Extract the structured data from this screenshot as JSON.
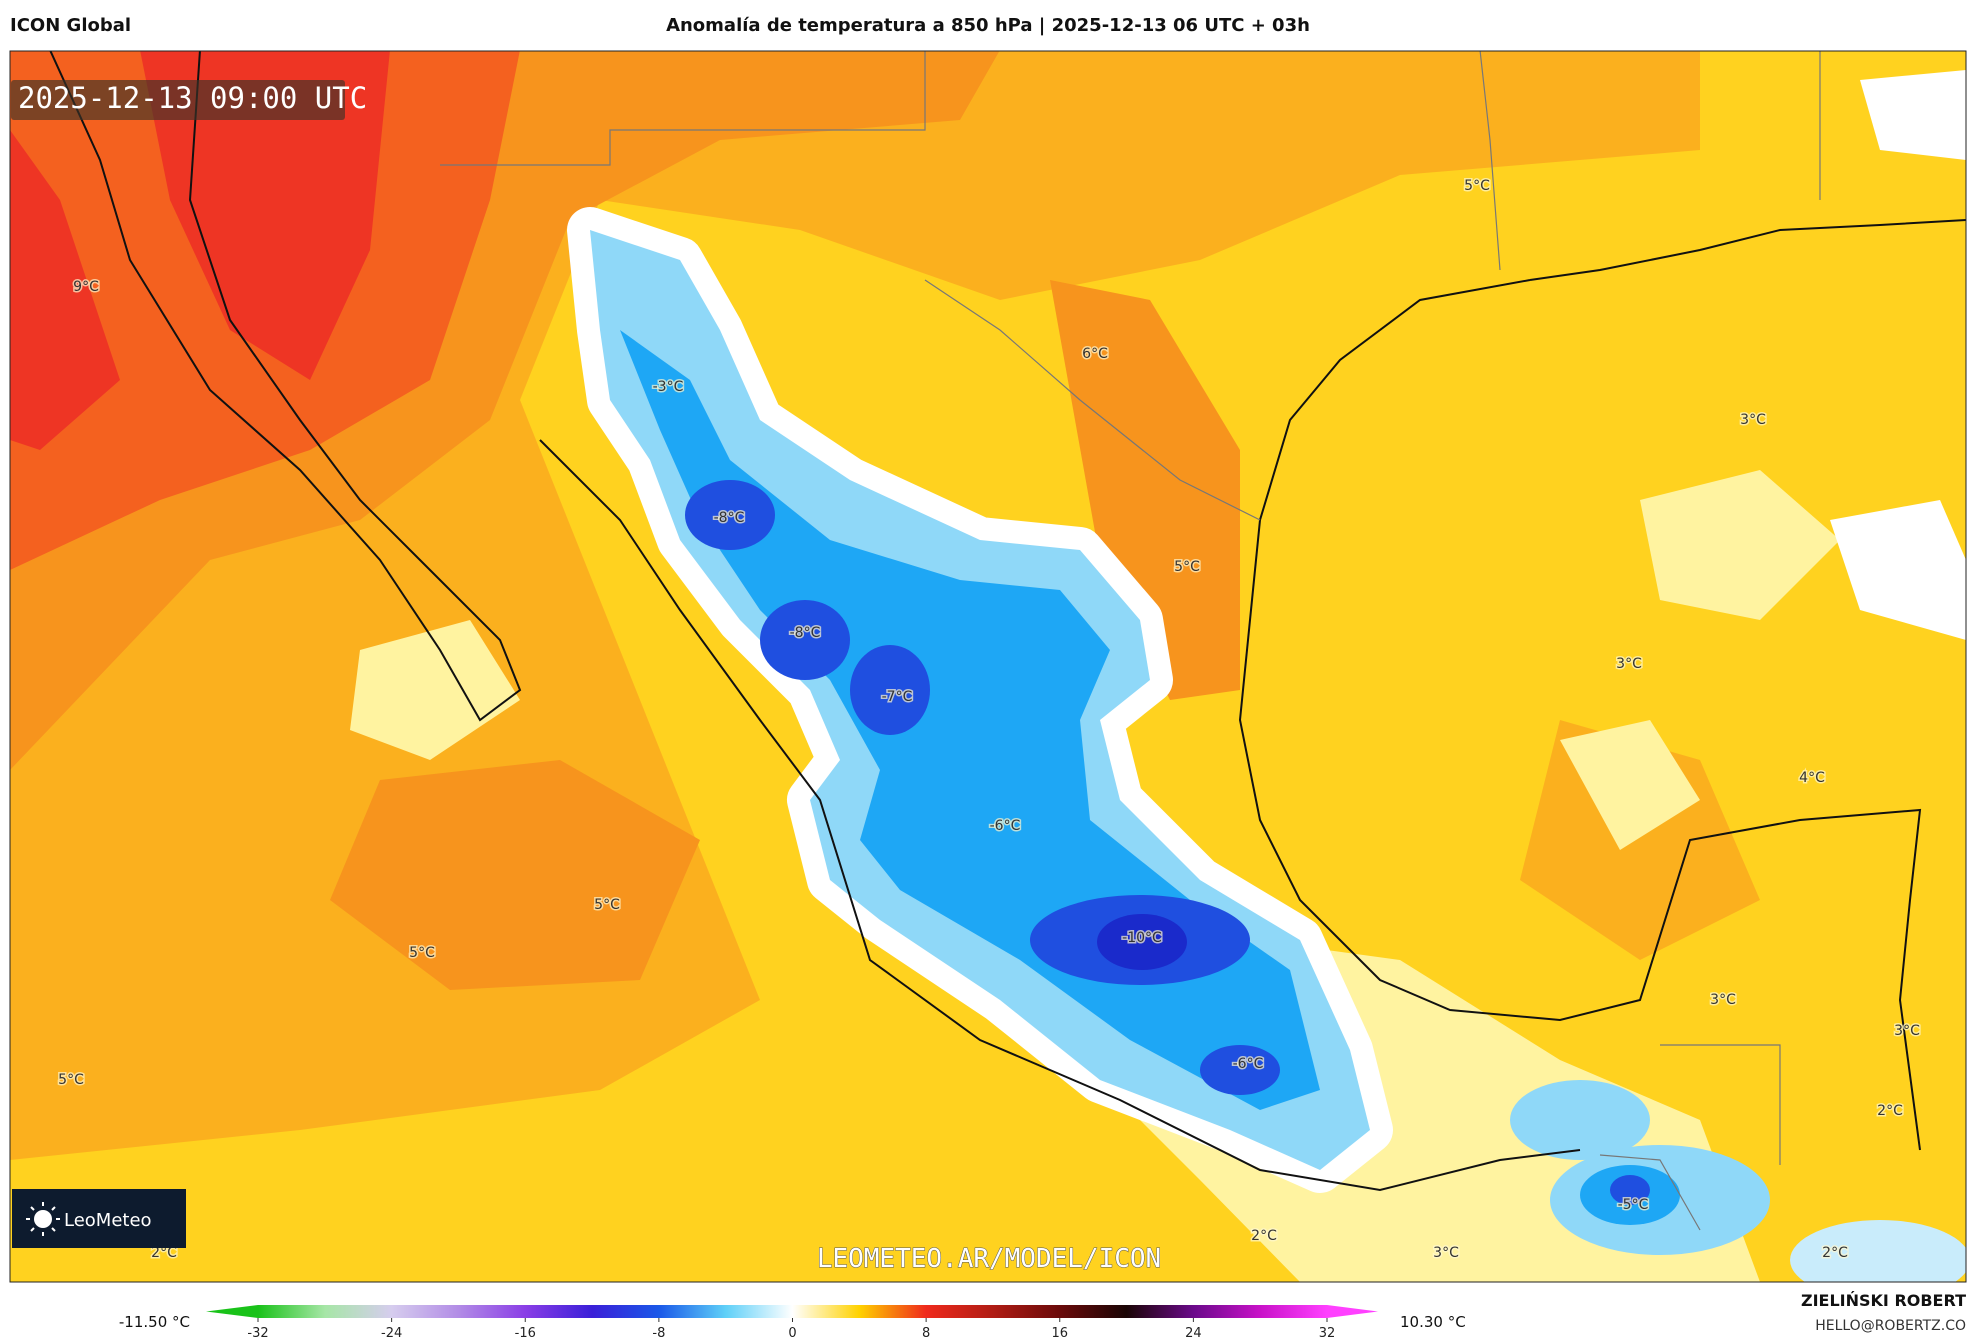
{
  "header": {
    "left": "ICON Global",
    "title": "Anomalía de temperatura a 850 hPa | 2025-12-13 06 UTC + 03h"
  },
  "map": {
    "timestamp": "2025-12-13 09:00 UTC",
    "labels": [
      "9°C",
      "5°C",
      "-3°C",
      "6°C",
      "3°C",
      "-8°C",
      "5°C",
      "-8°C",
      "3°C",
      "-7°C",
      "4°C",
      "-6°C",
      "5°C",
      "5°C",
      "-10°C",
      "3°C",
      "3°C",
      "-6°C",
      "5°C",
      "2°C",
      "-5°C",
      "2°C",
      "3°C",
      "2°C",
      "2°C"
    ],
    "watermark": "LEOMETEO.AR/MODEL/ICON",
    "logo": "LeoMeteo"
  },
  "colorbar": {
    "min_label": "-11.50 °C",
    "max_label": "10.30 °C",
    "range": [
      -32,
      32
    ],
    "ticks": [
      -32,
      -24,
      -16,
      -8,
      0,
      8,
      16,
      24,
      32
    ],
    "colors": [
      "#19c219",
      "#a6e6a6",
      "#d6cdee",
      "#b28ce6",
      "#8a3ee6",
      "#3a1fd8",
      "#1a58e8",
      "#5fd0f8",
      "#ffffff",
      "#ffd200",
      "#ef2a1c",
      "#b01c14",
      "#6a0a0a",
      "#1a0505",
      "#6a0a8a",
      "#c812c8",
      "#ff40ff"
    ]
  },
  "footer": {
    "author": "ZIELIŃSKI ROBERT",
    "email": "HELLO@ROBERTZ.CO"
  }
}
